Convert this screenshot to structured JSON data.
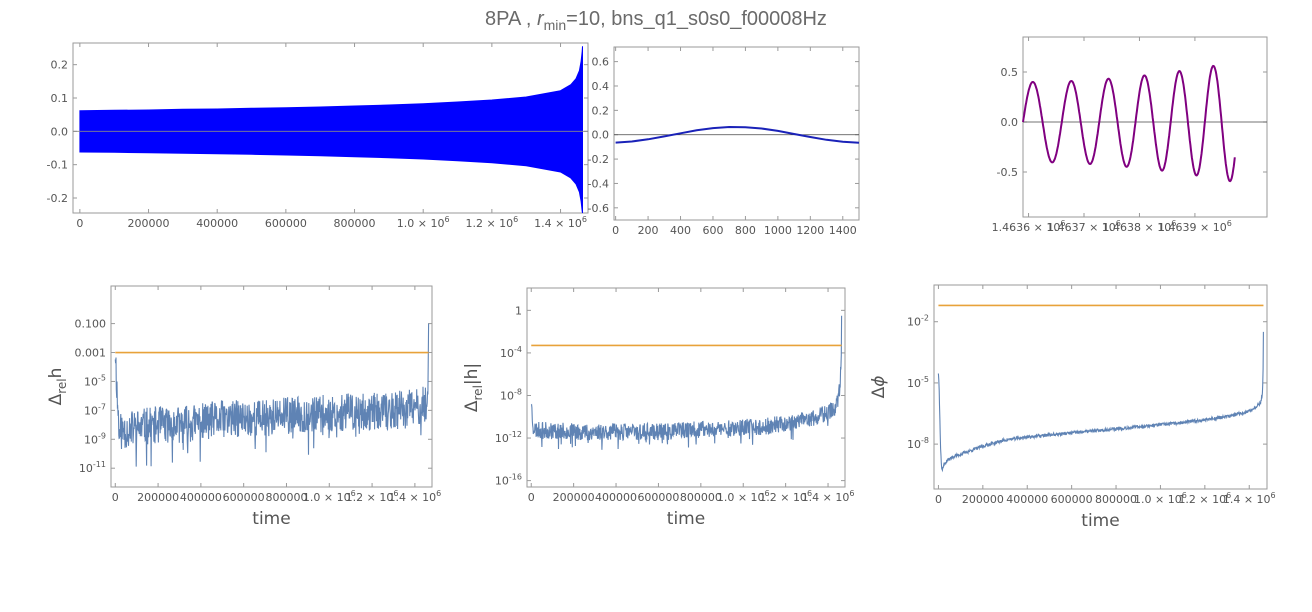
{
  "title": {
    "prefix": "8PA , ",
    "r_symbol": "r",
    "r_subscript": "min",
    "suffix": "=10, bns_q1_s0s0_f00008Hz"
  },
  "colors": {
    "frame": "#9a9a9a",
    "tick_text": "#555555",
    "zero_line": "#888888",
    "waveform_full": "#0000ff",
    "waveform_zoom": "#1a22b8",
    "waveform_end": "#800080",
    "error_series": "#5f83b4",
    "threshold": "#e8a23a"
  },
  "chart_data": [
    {
      "id": "waveform-full",
      "type": "area",
      "x": [
        0,
        1463900
      ],
      "xlim": [
        -20000,
        1480000
      ],
      "ylim": [
        -0.245,
        0.265
      ],
      "envelope": {
        "x": [
          0,
          100000,
          200000,
          300000,
          400000,
          500000,
          600000,
          700000,
          800000,
          900000,
          1000000,
          1100000,
          1200000,
          1300000,
          1400000,
          1430000,
          1445000,
          1455000,
          1460000,
          1463000,
          1464000
        ],
        "upper": [
          0.062,
          0.063,
          0.064,
          0.066,
          0.067,
          0.069,
          0.071,
          0.073,
          0.076,
          0.079,
          0.083,
          0.088,
          0.094,
          0.103,
          0.122,
          0.14,
          0.158,
          0.182,
          0.21,
          0.24,
          0.255
        ],
        "lower": [
          -0.062,
          -0.063,
          -0.064,
          -0.066,
          -0.067,
          -0.069,
          -0.071,
          -0.073,
          -0.076,
          -0.079,
          -0.083,
          -0.088,
          -0.094,
          -0.103,
          -0.122,
          -0.14,
          -0.158,
          -0.182,
          -0.21,
          -0.24,
          -0.245
        ]
      },
      "xticks": [
        {
          "v": 0,
          "t": "0"
        },
        {
          "v": 200000,
          "t": "200000"
        },
        {
          "v": 400000,
          "t": "400000"
        },
        {
          "v": 600000,
          "t": "600000"
        },
        {
          "v": 800000,
          "t": "800000"
        },
        {
          "v": 1000000,
          "t": "1.0 × 10",
          "sup": "6"
        },
        {
          "v": 1200000,
          "t": "1.2 × 10",
          "sup": "6"
        },
        {
          "v": 1400000,
          "t": "1.4 × 10",
          "sup": "6"
        }
      ],
      "yticks": [
        {
          "v": -0.2,
          "t": "-0.2"
        },
        {
          "v": -0.1,
          "t": "-0.1"
        },
        {
          "v": 0.0,
          "t": "0.0"
        },
        {
          "v": 0.1,
          "t": "0.1"
        },
        {
          "v": 0.2,
          "t": "0.2"
        }
      ],
      "xlabel": "",
      "ylabel": ""
    },
    {
      "id": "waveform-early",
      "type": "line",
      "x": [
        0,
        100,
        200,
        300,
        400,
        500,
        600,
        700,
        800,
        900,
        1000,
        1100,
        1200,
        1300,
        1400,
        1500
      ],
      "y": [
        -0.065,
        -0.056,
        -0.038,
        -0.014,
        0.012,
        0.036,
        0.054,
        0.063,
        0.062,
        0.051,
        0.031,
        0.006,
        -0.019,
        -0.042,
        -0.058,
        -0.066
      ],
      "xlim": [
        -10,
        1500
      ],
      "ylim": [
        -0.7,
        0.72
      ],
      "xticks": [
        {
          "v": 0,
          "t": "0"
        },
        {
          "v": 200,
          "t": "200"
        },
        {
          "v": 400,
          "t": "400"
        },
        {
          "v": 600,
          "t": "600"
        },
        {
          "v": 800,
          "t": "800"
        },
        {
          "v": 1000,
          "t": "1000"
        },
        {
          "v": 1200,
          "t": "1200"
        },
        {
          "v": 1400,
          "t": "1400"
        }
      ],
      "yticks": [
        {
          "v": -0.6,
          "t": "-0.6"
        },
        {
          "v": -0.4,
          "t": "-0.4"
        },
        {
          "v": -0.2,
          "t": "-0.2"
        },
        {
          "v": 0.0,
          "t": "0.0"
        },
        {
          "v": 0.2,
          "t": "0.2"
        },
        {
          "v": 0.4,
          "t": "0.4"
        },
        {
          "v": 0.6,
          "t": "0.6"
        }
      ],
      "xlabel": "",
      "ylabel": ""
    },
    {
      "id": "waveform-merger",
      "type": "line",
      "x_start": 1463590,
      "x_end": 1463972,
      "cycles": 5.9,
      "amplitude_start": 0.4,
      "amplitude_end": 0.6,
      "xlim": [
        1463590,
        1464030
      ],
      "ylim": [
        -0.95,
        0.85
      ],
      "xticks": [
        {
          "v": 1463600,
          "t": "1.4636 × 10",
          "sup": "6"
        },
        {
          "v": 1463700,
          "t": "1.4637 × 10",
          "sup": "6"
        },
        {
          "v": 1463800,
          "t": "1.4638 × 10",
          "sup": "6"
        },
        {
          "v": 1463900,
          "t": "1.4639 × 10",
          "sup": "6"
        }
      ],
      "yticks": [
        {
          "v": -0.5,
          "t": "-0.5"
        },
        {
          "v": 0.0,
          "t": "0.0"
        },
        {
          "v": 0.5,
          "t": "0.5"
        }
      ],
      "xlabel": "",
      "ylabel": ""
    },
    {
      "id": "rel-error-h",
      "type": "line",
      "log_y": true,
      "xlim": [
        -20000,
        1480000
      ],
      "ylim_exp": [
        -12.3,
        1.6
      ],
      "threshold_exp": -3,
      "series": {
        "x": [
          0,
          5000,
          10000,
          20000,
          40000,
          100000,
          200000,
          300000,
          400000,
          500000,
          600000,
          700000,
          800000,
          900000,
          1000000,
          1100000,
          1200000,
          1300000,
          1400000,
          1460000,
          1462000,
          1464000
        ],
        "level_exp": [
          -2.8,
          -4.5,
          -6.5,
          -8.5,
          -8.4,
          -8.2,
          -8.0,
          -8.0,
          -7.8,
          -7.6,
          -7.6,
          -7.5,
          -7.4,
          -7.3,
          -7.2,
          -7.1,
          -7.1,
          -7.0,
          -6.8,
          -6.6,
          -4.5,
          -1.0
        ],
        "noise_exp": 1.3
      },
      "xticks": [
        {
          "v": 0,
          "t": "0"
        },
        {
          "v": 200000,
          "t": "200000"
        },
        {
          "v": 400000,
          "t": "400000"
        },
        {
          "v": 600000,
          "t": "600000"
        },
        {
          "v": 800000,
          "t": "800000"
        },
        {
          "v": 1000000,
          "t": "1.0 × 10",
          "sup": "6"
        },
        {
          "v": 1200000,
          "t": "1.2 × 10",
          "sup": "6"
        },
        {
          "v": 1400000,
          "t": "1.4 × 10",
          "sup": "6"
        }
      ],
      "yticks": [
        {
          "v": -11,
          "t": "10",
          "sup": "-11"
        },
        {
          "v": -9,
          "t": "10",
          "sup": "-9"
        },
        {
          "v": -7,
          "t": "10",
          "sup": "-7"
        },
        {
          "v": -5,
          "t": "10",
          "sup": "-5"
        },
        {
          "v": -3,
          "t": "0.001"
        },
        {
          "v": -1,
          "t": "0.100"
        }
      ],
      "xlabel": "time",
      "ylabel_main": "Δ",
      "ylabel_sub": "rel",
      "ylabel_tail": "h"
    },
    {
      "id": "rel-error-abs-h",
      "type": "line",
      "log_y": true,
      "xlim": [
        -20000,
        1480000
      ],
      "ylim_exp": [
        -16.6,
        2.1
      ],
      "threshold_exp": -3.3,
      "series": {
        "x": [
          0,
          5000,
          10000,
          20000,
          50000,
          100000,
          200000,
          300000,
          400000,
          500000,
          600000,
          700000,
          800000,
          900000,
          1000000,
          1100000,
          1200000,
          1300000,
          1400000,
          1440000,
          1455000,
          1462000,
          1464000
        ],
        "level_exp": [
          -8.5,
          -10.0,
          -11.0,
          -11.2,
          -11.3,
          -11.3,
          -11.4,
          -11.4,
          -11.4,
          -11.4,
          -11.4,
          -11.3,
          -11.2,
          -11.1,
          -11.0,
          -10.9,
          -10.6,
          -10.3,
          -9.6,
          -9.0,
          -7.5,
          -5.0,
          -0.5
        ],
        "noise_exp": 0.8
      },
      "xticks": [
        {
          "v": 0,
          "t": "0"
        },
        {
          "v": 200000,
          "t": "200000"
        },
        {
          "v": 400000,
          "t": "400000"
        },
        {
          "v": 600000,
          "t": "600000"
        },
        {
          "v": 800000,
          "t": "800000"
        },
        {
          "v": 1000000,
          "t": "1.0 × 10",
          "sup": "6"
        },
        {
          "v": 1200000,
          "t": "1.2 × 10",
          "sup": "6"
        },
        {
          "v": 1400000,
          "t": "1.4 × 10",
          "sup": "6"
        }
      ],
      "yticks": [
        {
          "v": -16,
          "t": "10",
          "sup": "-16"
        },
        {
          "v": -12,
          "t": "10",
          "sup": "-12"
        },
        {
          "v": -8,
          "t": "10",
          "sup": "-8"
        },
        {
          "v": -4,
          "t": "10",
          "sup": "-4"
        },
        {
          "v": 0,
          "t": "1"
        }
      ],
      "xlabel": "time",
      "ylabel_main": "Δ",
      "ylabel_sub": "rel",
      "ylabel_tail": "|h|"
    },
    {
      "id": "phase-error",
      "type": "line",
      "log_y": true,
      "xlim": [
        -20000,
        1480000
      ],
      "ylim_exp": [
        -10.2,
        -0.2
      ],
      "threshold_exp": -1.2,
      "series": {
        "x": [
          0,
          3000,
          6000,
          10000,
          15000,
          25000,
          40000,
          70000,
          100000,
          200000,
          300000,
          400000,
          500000,
          600000,
          700000,
          800000,
          900000,
          1000000,
          1100000,
          1200000,
          1300000,
          1400000,
          1450000,
          1460000,
          1463000,
          1464000
        ],
        "level_exp": [
          -4.5,
          -5.2,
          -6.5,
          -8.3,
          -9.3,
          -9.0,
          -8.8,
          -8.6,
          -8.5,
          -8.1,
          -7.8,
          -7.65,
          -7.55,
          -7.45,
          -7.35,
          -7.25,
          -7.15,
          -7.05,
          -6.95,
          -6.8,
          -6.65,
          -6.4,
          -6.0,
          -5.5,
          -4.0,
          -2.5
        ],
        "noise_exp": 0.08
      },
      "xticks": [
        {
          "v": 0,
          "t": "0"
        },
        {
          "v": 200000,
          "t": "200000"
        },
        {
          "v": 400000,
          "t": "400000"
        },
        {
          "v": 600000,
          "t": "600000"
        },
        {
          "v": 800000,
          "t": "800000"
        },
        {
          "v": 1000000,
          "t": "1.0 × 10",
          "sup": "6"
        },
        {
          "v": 1200000,
          "t": "1.2 × 10",
          "sup": "6"
        },
        {
          "v": 1400000,
          "t": "1.4 × 10",
          "sup": "6"
        }
      ],
      "yticks": [
        {
          "v": -8,
          "t": "10",
          "sup": "-8"
        },
        {
          "v": -5,
          "t": "10",
          "sup": "-5"
        },
        {
          "v": -2,
          "t": "10",
          "sup": "-2"
        }
      ],
      "xlabel": "time",
      "ylabel_main": "Δ",
      "ylabel_sub": "",
      "ylabel_tail": "ϕ"
    }
  ]
}
